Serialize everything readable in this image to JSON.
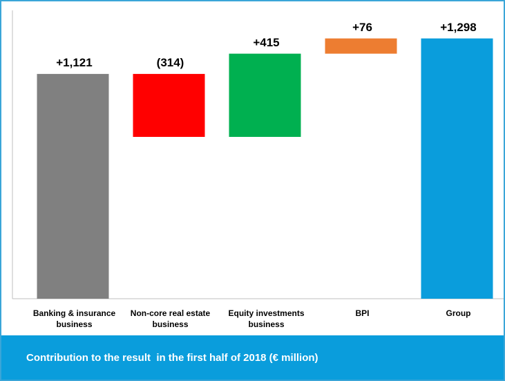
{
  "chart_data": {
    "type": "waterfall",
    "title": "Contribution to the result  in the first half of 2018 (€ million)",
    "categories": [
      "Banking & insurance business",
      "Non-core real estate business",
      "Equity investments business",
      "BPI",
      "Group"
    ],
    "values": [
      1121,
      -314,
      415,
      76,
      1298
    ],
    "value_labels": [
      "+1,121",
      "(314)",
      "+415",
      "+76",
      "+1,298"
    ],
    "colors": [
      "#808080",
      "#ff0000",
      "#00b050",
      "#ed7d31",
      "#0a9ddc"
    ],
    "total_last": true,
    "ylim": [
      0,
      1400
    ]
  }
}
